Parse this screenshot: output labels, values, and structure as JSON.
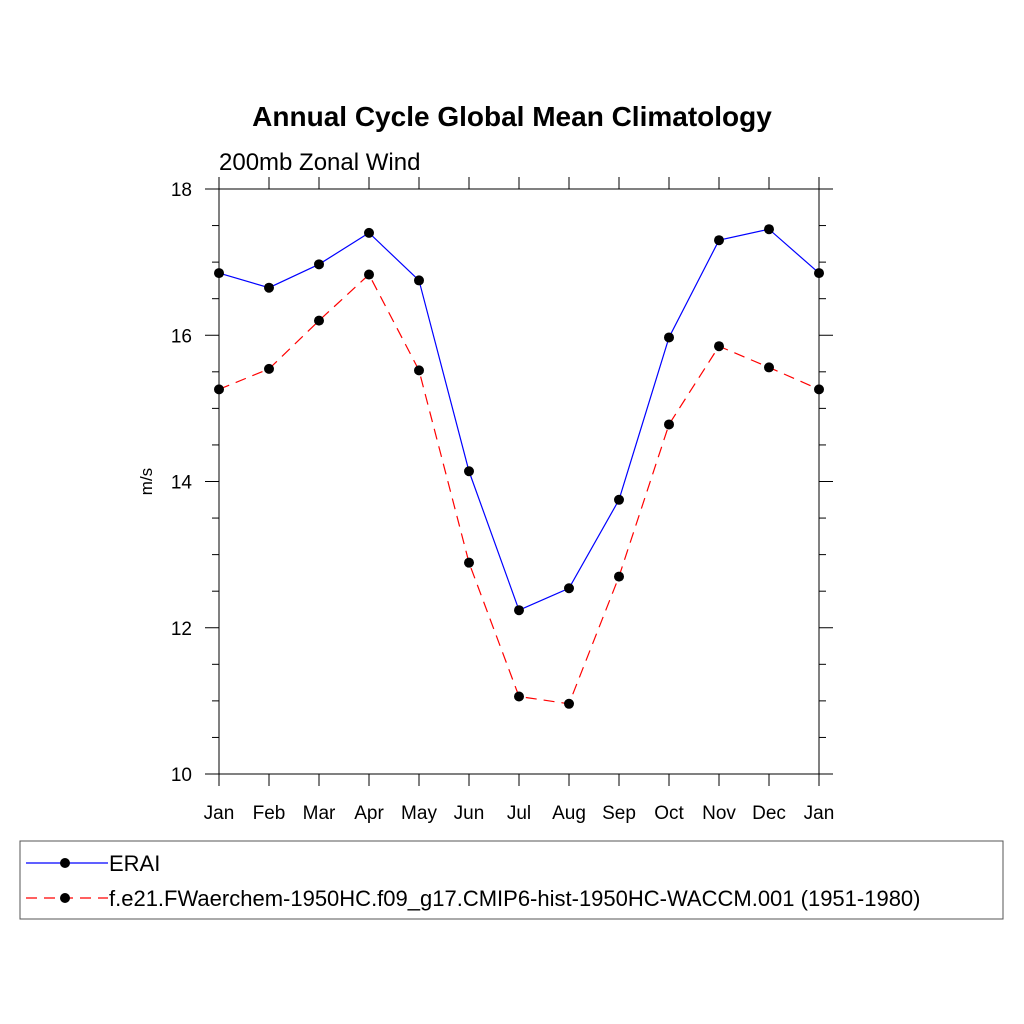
{
  "chart_data": {
    "type": "line",
    "title": "Annual Cycle Global Mean Climatology",
    "subtitle": "200mb Zonal Wind",
    "xlabel": "",
    "ylabel": "m/s",
    "categories": [
      "Jan",
      "Feb",
      "Mar",
      "Apr",
      "May",
      "Jun",
      "Jul",
      "Aug",
      "Sep",
      "Oct",
      "Nov",
      "Dec",
      "Jan"
    ],
    "ylim": [
      10,
      18
    ],
    "yticks": [
      "10",
      "12",
      "14",
      "16",
      "18"
    ],
    "series": [
      {
        "name": "ERAI",
        "color": "#0000ff",
        "line_style": "solid",
        "marker": "filled-circle",
        "values": [
          16.85,
          16.65,
          16.97,
          17.4,
          16.75,
          14.14,
          12.24,
          12.54,
          13.75,
          15.97,
          17.3,
          17.45,
          16.85
        ]
      },
      {
        "name": "f.e21.FWaerchem-1950HC.f09_g17.CMIP6-hist-1950HC-WACCM.001 (1951-1980)",
        "color": "#ff0000",
        "line_style": "dashed",
        "marker": "filled-circle",
        "values": [
          15.26,
          15.54,
          16.2,
          16.83,
          15.52,
          12.89,
          11.06,
          10.96,
          12.7,
          14.78,
          15.85,
          15.56,
          15.26
        ]
      }
    ],
    "grid": false,
    "legend_position": "bottom"
  }
}
